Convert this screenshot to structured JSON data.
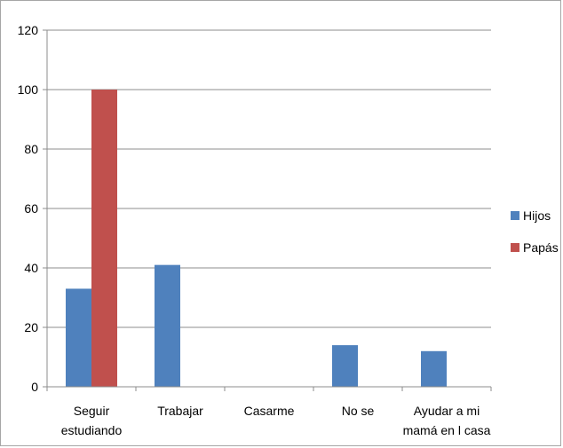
{
  "chart_data": {
    "type": "bar",
    "categories": [
      [
        "Seguir",
        "estudiando"
      ],
      [
        "Trabajar"
      ],
      [
        "Casarme"
      ],
      [
        "No se"
      ],
      [
        "Ayudar a mi",
        "mamá en l casa"
      ]
    ],
    "series": [
      {
        "name": "Hijos",
        "color": "#4f81bd",
        "values": [
          33,
          41,
          0,
          14,
          12
        ]
      },
      {
        "name": "Papás",
        "color": "#c0504d",
        "values": [
          100,
          0,
          0,
          0,
          0
        ]
      }
    ],
    "ylim": [
      0,
      120
    ],
    "yticks": [
      0,
      20,
      40,
      60,
      80,
      100,
      120
    ],
    "grid": true,
    "legend_position": "right"
  }
}
